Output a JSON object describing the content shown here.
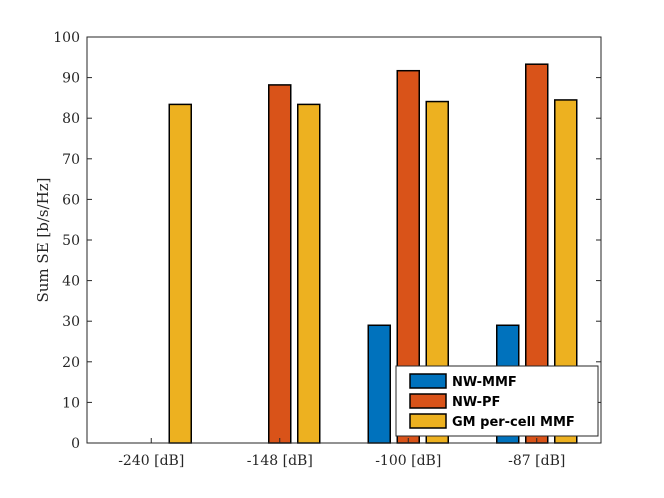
{
  "chart_data": {
    "type": "bar",
    "categories": [
      "-240 [dB]",
      "-148 [dB]",
      "-100 [dB]",
      "-87 [dB]"
    ],
    "series": [
      {
        "name": "NW-MMF",
        "color": "#0072BD",
        "values": [
          0,
          0,
          29,
          29
        ]
      },
      {
        "name": "NW-PF",
        "color": "#D95319",
        "values": [
          0,
          88.2,
          91.7,
          93.3
        ]
      },
      {
        "name": "GM per-cell MMF",
        "color": "#EDB120",
        "values": [
          83.4,
          83.4,
          84.1,
          84.5
        ]
      }
    ],
    "title": "",
    "xlabel": "",
    "ylabel": "Sum SE [b/s/Hz]",
    "ylim": [
      0,
      100
    ],
    "yticks": [
      0,
      10,
      20,
      30,
      40,
      50,
      60,
      70,
      80,
      90,
      100
    ],
    "grid": false,
    "legend_position": "bottom-right"
  }
}
